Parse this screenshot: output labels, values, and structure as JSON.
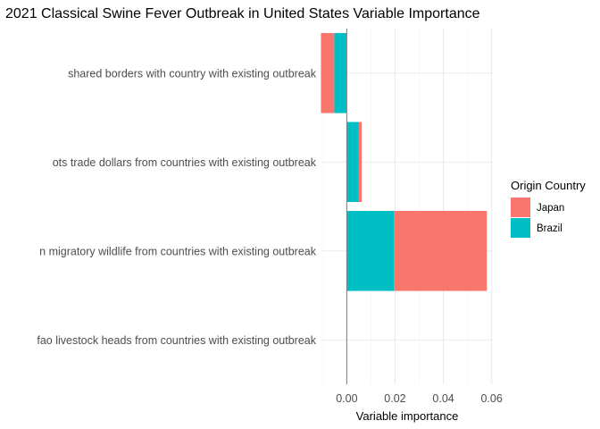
{
  "chart_data": {
    "type": "bar",
    "orientation": "horizontal",
    "stacked": true,
    "title": "2021 Classical Swine Fever Outbreak in United States Variable Importance",
    "xlabel": "Variable importance",
    "ylabel": "",
    "xlim": [
      -0.0105,
      0.0605
    ],
    "x_ticks": [
      0.0,
      0.02,
      0.04,
      0.06
    ],
    "x_tick_labels": [
      "0.00",
      "0.02",
      "0.04",
      "0.06"
    ],
    "grid": true,
    "zero_line": true,
    "categories": [
      "shared borders with country with existing outbreak",
      "ots trade dollars from countries with existing outbreak",
      "n migratory wildlife from countries with existing outbreak",
      "fao livestock heads from countries with existing outbreak"
    ],
    "legend": {
      "title": "Origin Country",
      "position": "right",
      "entries": [
        {
          "name": "Japan",
          "color": "#F8766D"
        },
        {
          "name": "Brazil",
          "color": "#00BFC4"
        }
      ]
    },
    "series": [
      {
        "name": "Brazil",
        "color": "#00BFC4",
        "values": [
          -0.0052,
          0.005,
          0.0195,
          0.0
        ]
      },
      {
        "name": "Japan",
        "color": "#F8766D",
        "values": [
          -0.0055,
          0.0012,
          0.0385,
          0.0
        ]
      }
    ]
  }
}
